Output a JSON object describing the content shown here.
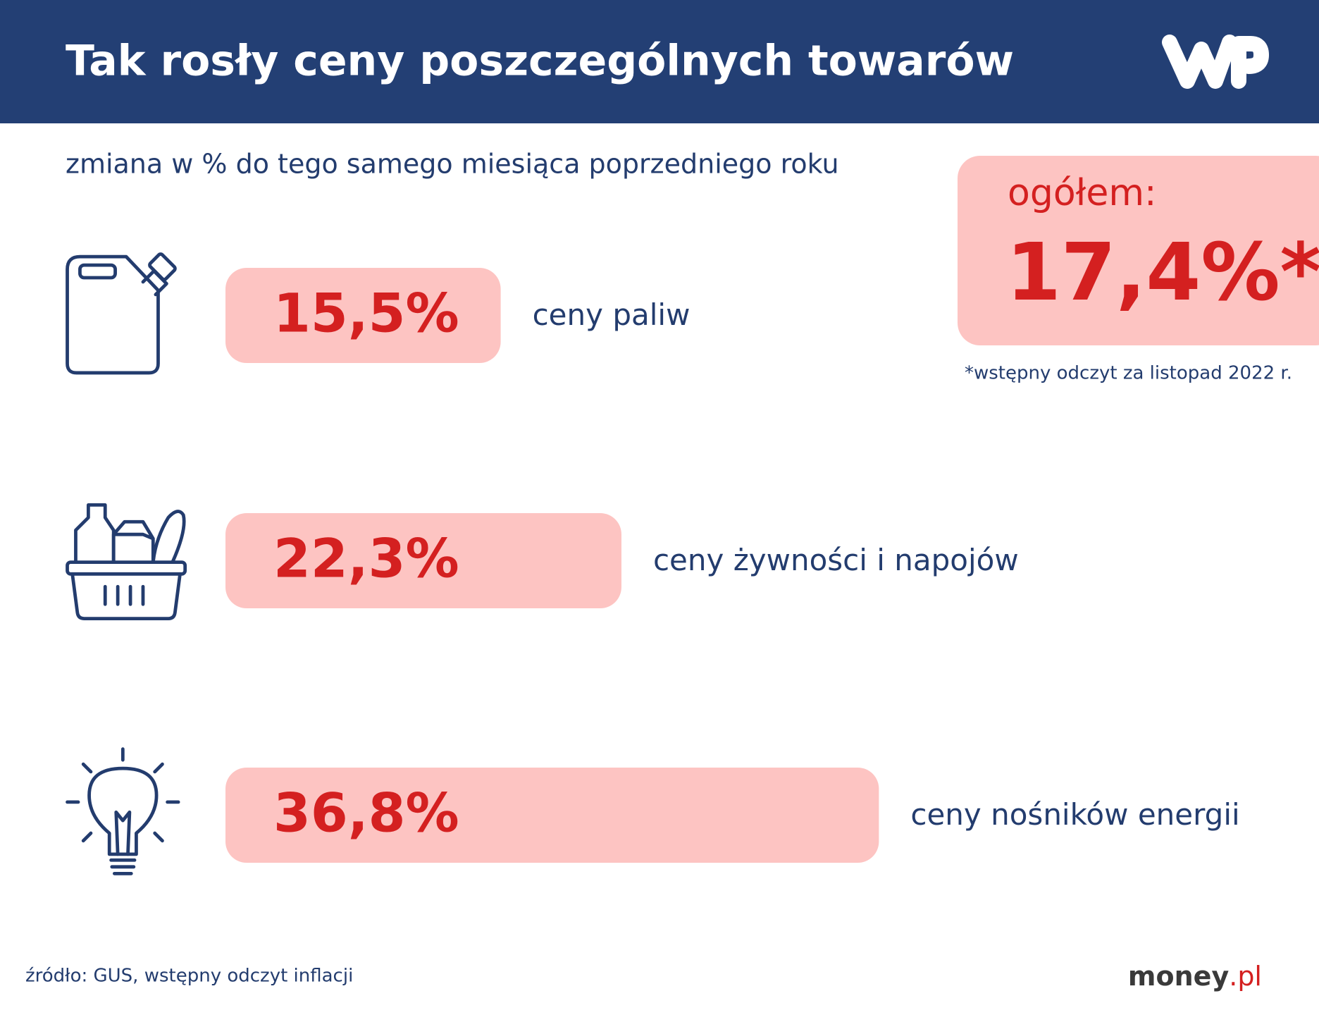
{
  "chart_data": {
    "type": "bar",
    "title": "Tak rosły ceny poszczególnych towarów",
    "subtitle": "zmiana w % do tego samego miesiąca poprzedniego roku",
    "categories": [
      "ceny paliw",
      "ceny żywności i napojów",
      "ceny nośników energii"
    ],
    "values": [
      15.5,
      22.3,
      36.8
    ],
    "value_labels": [
      "15,5%",
      "22,3%",
      "36,8%"
    ],
    "color": "#fdc4c2",
    "total": {
      "label": "ogółem:",
      "value_label": "17,4%*"
    },
    "footnote": "*wstępny odczyt za listopad 2022 r.",
    "source": "źródło: GUS, wstępny odczyt inflacji",
    "brand": [
      "money",
      ".pl"
    ]
  }
}
